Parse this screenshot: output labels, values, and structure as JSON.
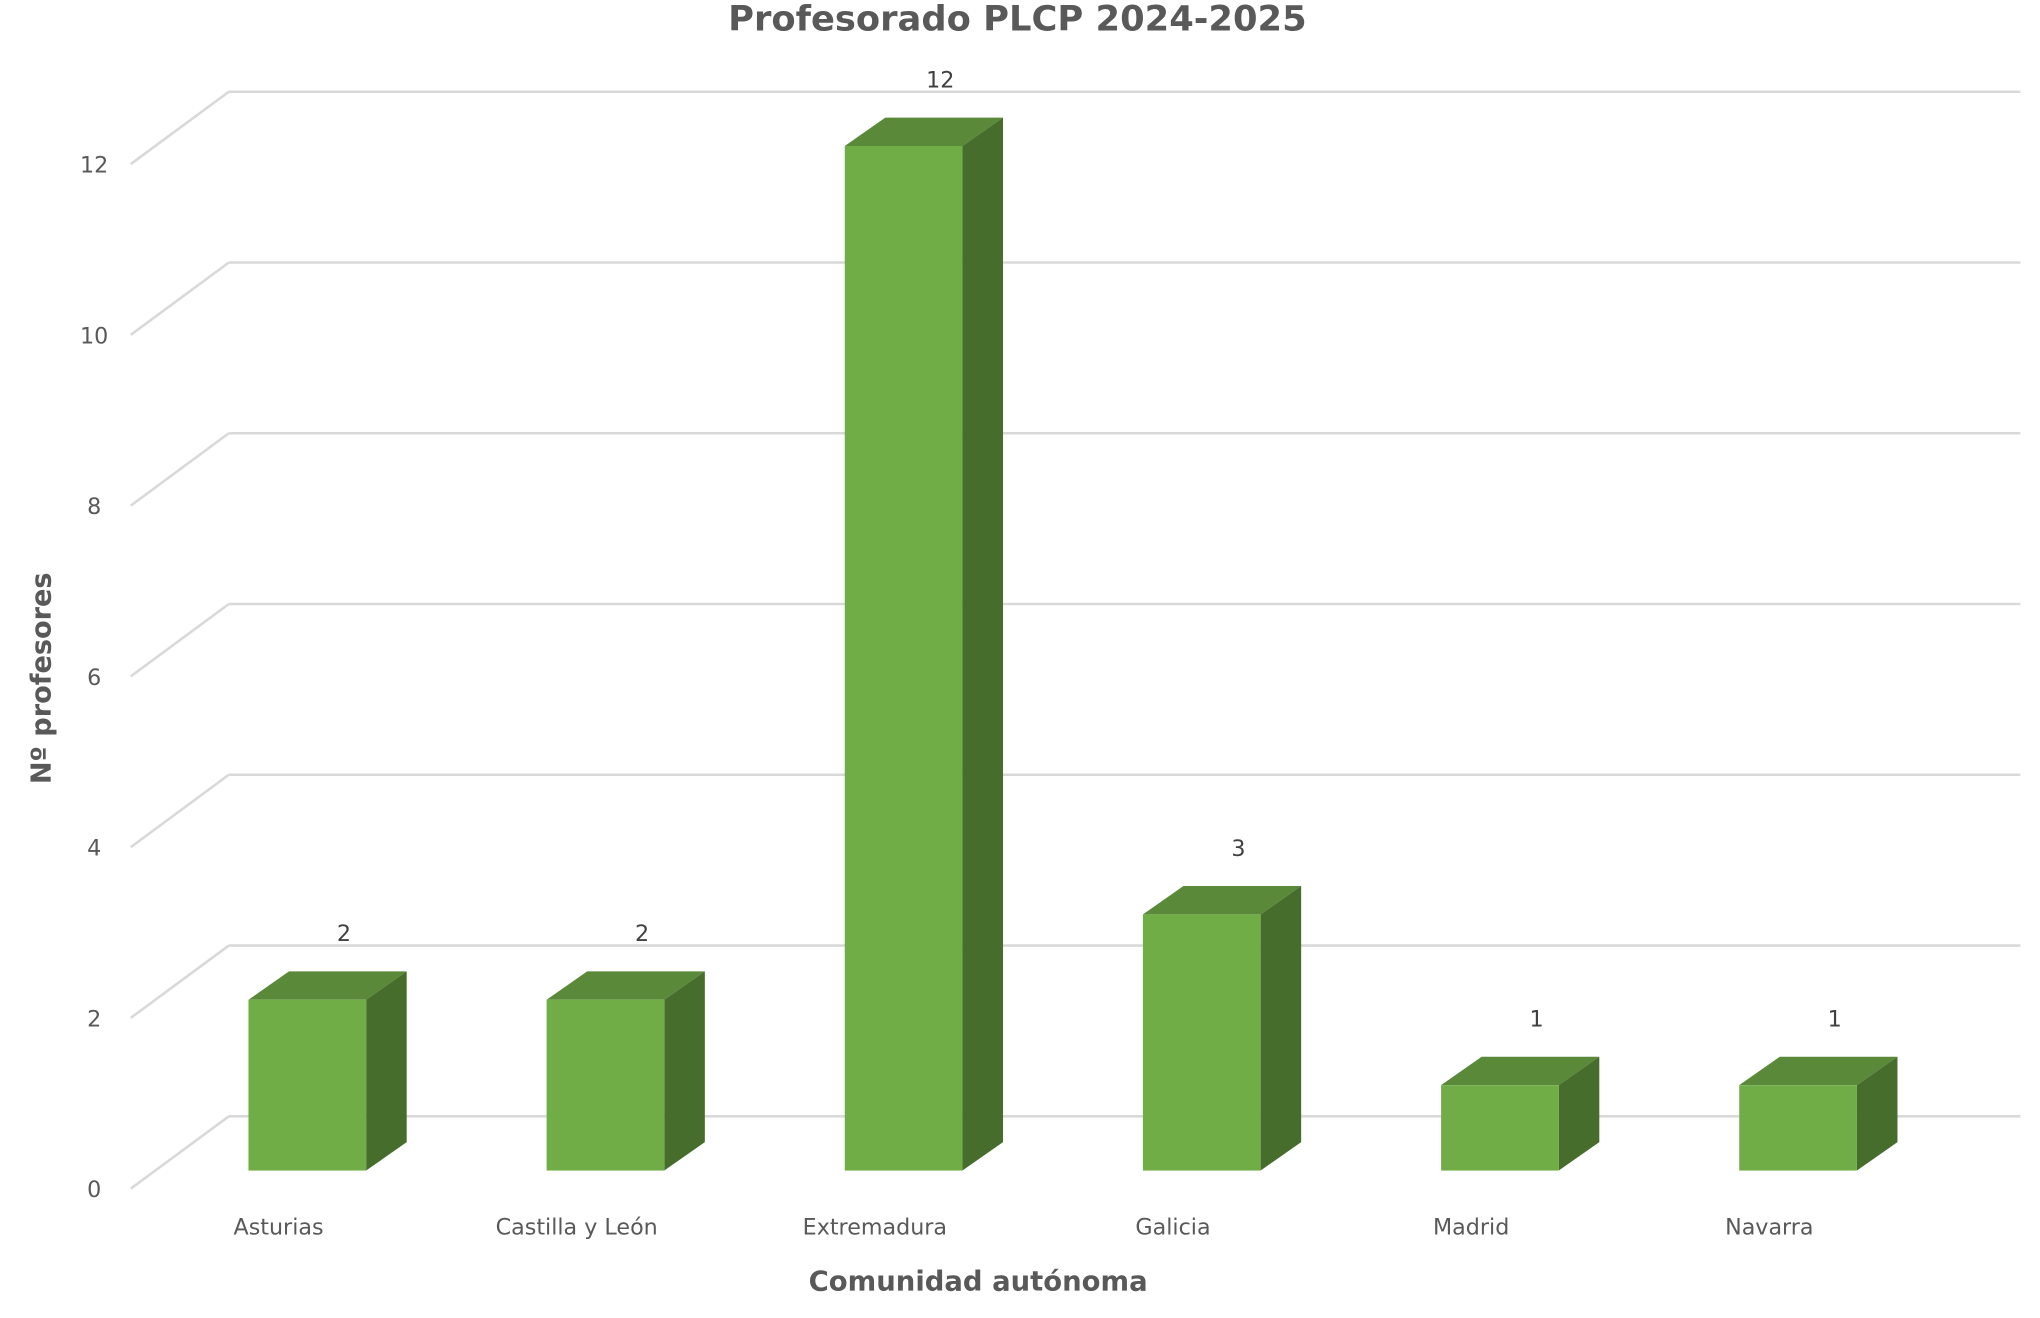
{
  "chart_data": {
    "type": "bar3d",
    "title": "Profesorado PLCP 2024-2025",
    "x_label": "Comunidad autónoma",
    "y_label": "Nº profesores",
    "categories": [
      "Asturias",
      "Castilla y León",
      "Extremadura",
      "Galicia",
      "Madrid",
      "Navarra"
    ],
    "values": [
      2,
      2,
      12,
      3,
      1,
      1
    ],
    "color": "#70ad47",
    "ylim": [
      0,
      12
    ],
    "yticks": [
      0,
      2,
      4,
      6,
      8,
      10,
      12
    ],
    "grid": true
  }
}
